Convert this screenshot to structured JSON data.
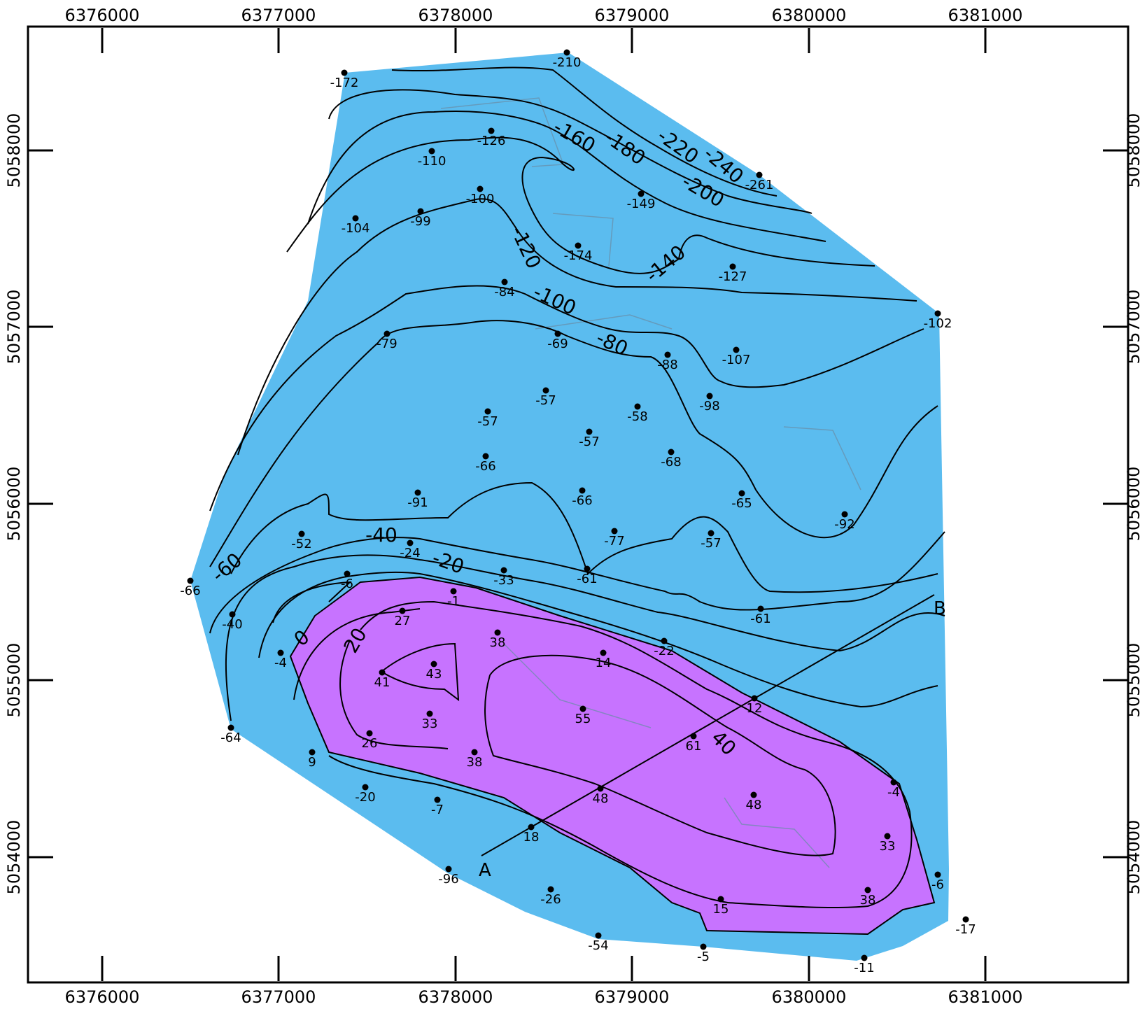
{
  "map": {
    "colors": {
      "fill_low": "#5bbcef",
      "fill_high": "#c773ff",
      "contour": "#000000",
      "frame": "#000000"
    },
    "x_ticks": [
      "6376000",
      "6377000",
      "6378000",
      "6379000",
      "6380000",
      "6381000"
    ],
    "y_ticks": [
      "5058000",
      "5057000",
      "5056000",
      "5055000",
      "5054000"
    ],
    "section": {
      "start_label": "A",
      "end_label": "B"
    },
    "contour_labels": [
      "-160",
      "-180",
      "-220",
      "-240",
      "-200",
      "-120",
      "-140",
      "-100",
      "-80",
      "-40",
      "-20",
      "-60",
      "0",
      "20",
      "40"
    ],
    "points": [
      "-172",
      "-210",
      "-126",
      "-110",
      "-100",
      "-261",
      "-149",
      "-104",
      "-99",
      "-174",
      "-127",
      "-84",
      "-102",
      "-79",
      "-69",
      "-88",
      "-107",
      "-57",
      "-57",
      "-58",
      "-98",
      "-57",
      "-66",
      "-68",
      "-91",
      "-66",
      "-65",
      "-92",
      "-52",
      "-24",
      "-77",
      "-57",
      "-66",
      "-6",
      "-33",
      "-61",
      "-1",
      "-61",
      "-40",
      "27",
      "38",
      "-22",
      "-4",
      "41",
      "43",
      "14",
      "12",
      "33",
      "55",
      "-64",
      "26",
      "38",
      "61",
      "9",
      "-20",
      "48",
      "-4",
      "48",
      "-7",
      "18",
      "33",
      "-96",
      "-6",
      "-26",
      "38",
      "15",
      "-54",
      "-17",
      "-5",
      "-11"
    ]
  }
}
